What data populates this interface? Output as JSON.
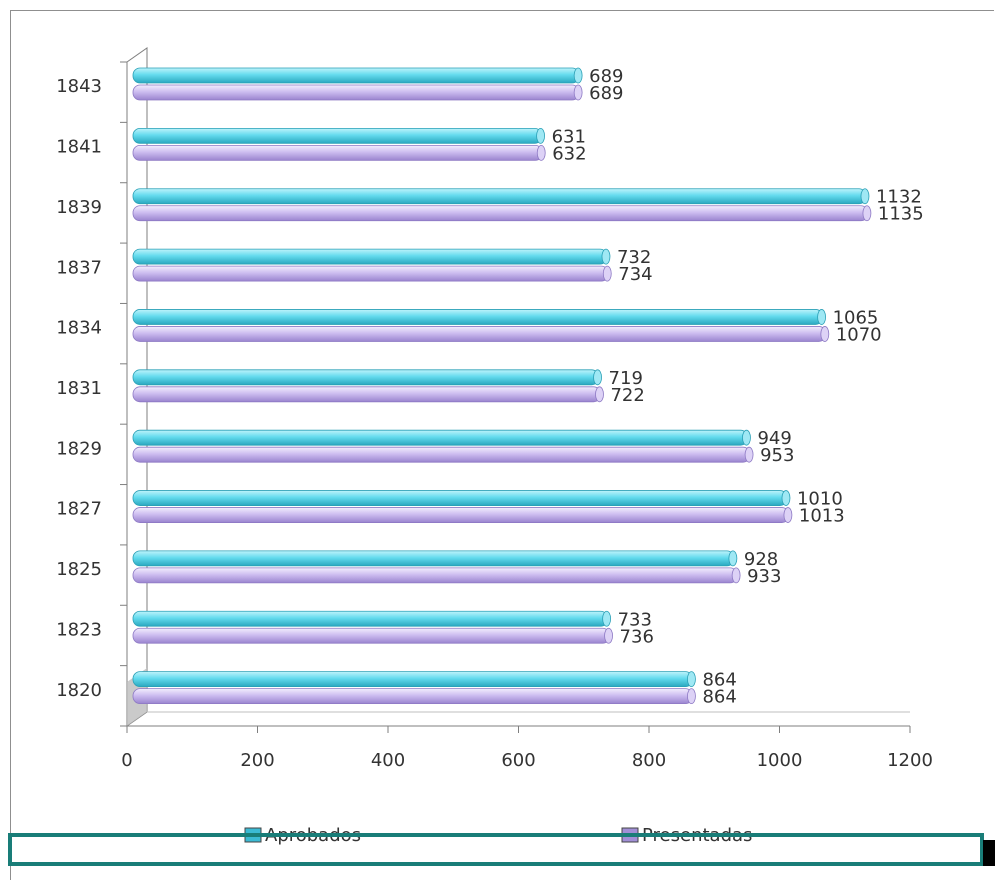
{
  "chart_data": {
    "type": "bar",
    "orientation": "horizontal",
    "categories": [
      "1820",
      "1823",
      "1825",
      "1827",
      "1829",
      "1831",
      "1834",
      "1837",
      "1839",
      "1841",
      "1843"
    ],
    "series": [
      {
        "name": "Aprobados",
        "color": "#5fd7ea",
        "values": [
          864,
          733,
          928,
          1010,
          949,
          719,
          1065,
          732,
          1132,
          631,
          689
        ]
      },
      {
        "name": "Presentadas",
        "color": "#c7b6ec",
        "values": [
          864,
          736,
          933,
          1013,
          953,
          722,
          1070,
          734,
          1135,
          632,
          689
        ]
      }
    ],
    "xlim": [
      0,
      1200
    ],
    "xticks": [
      "0",
      "200",
      "400",
      "600",
      "800",
      "1000",
      "1200"
    ],
    "grid": false,
    "legend_position": "bottom"
  }
}
